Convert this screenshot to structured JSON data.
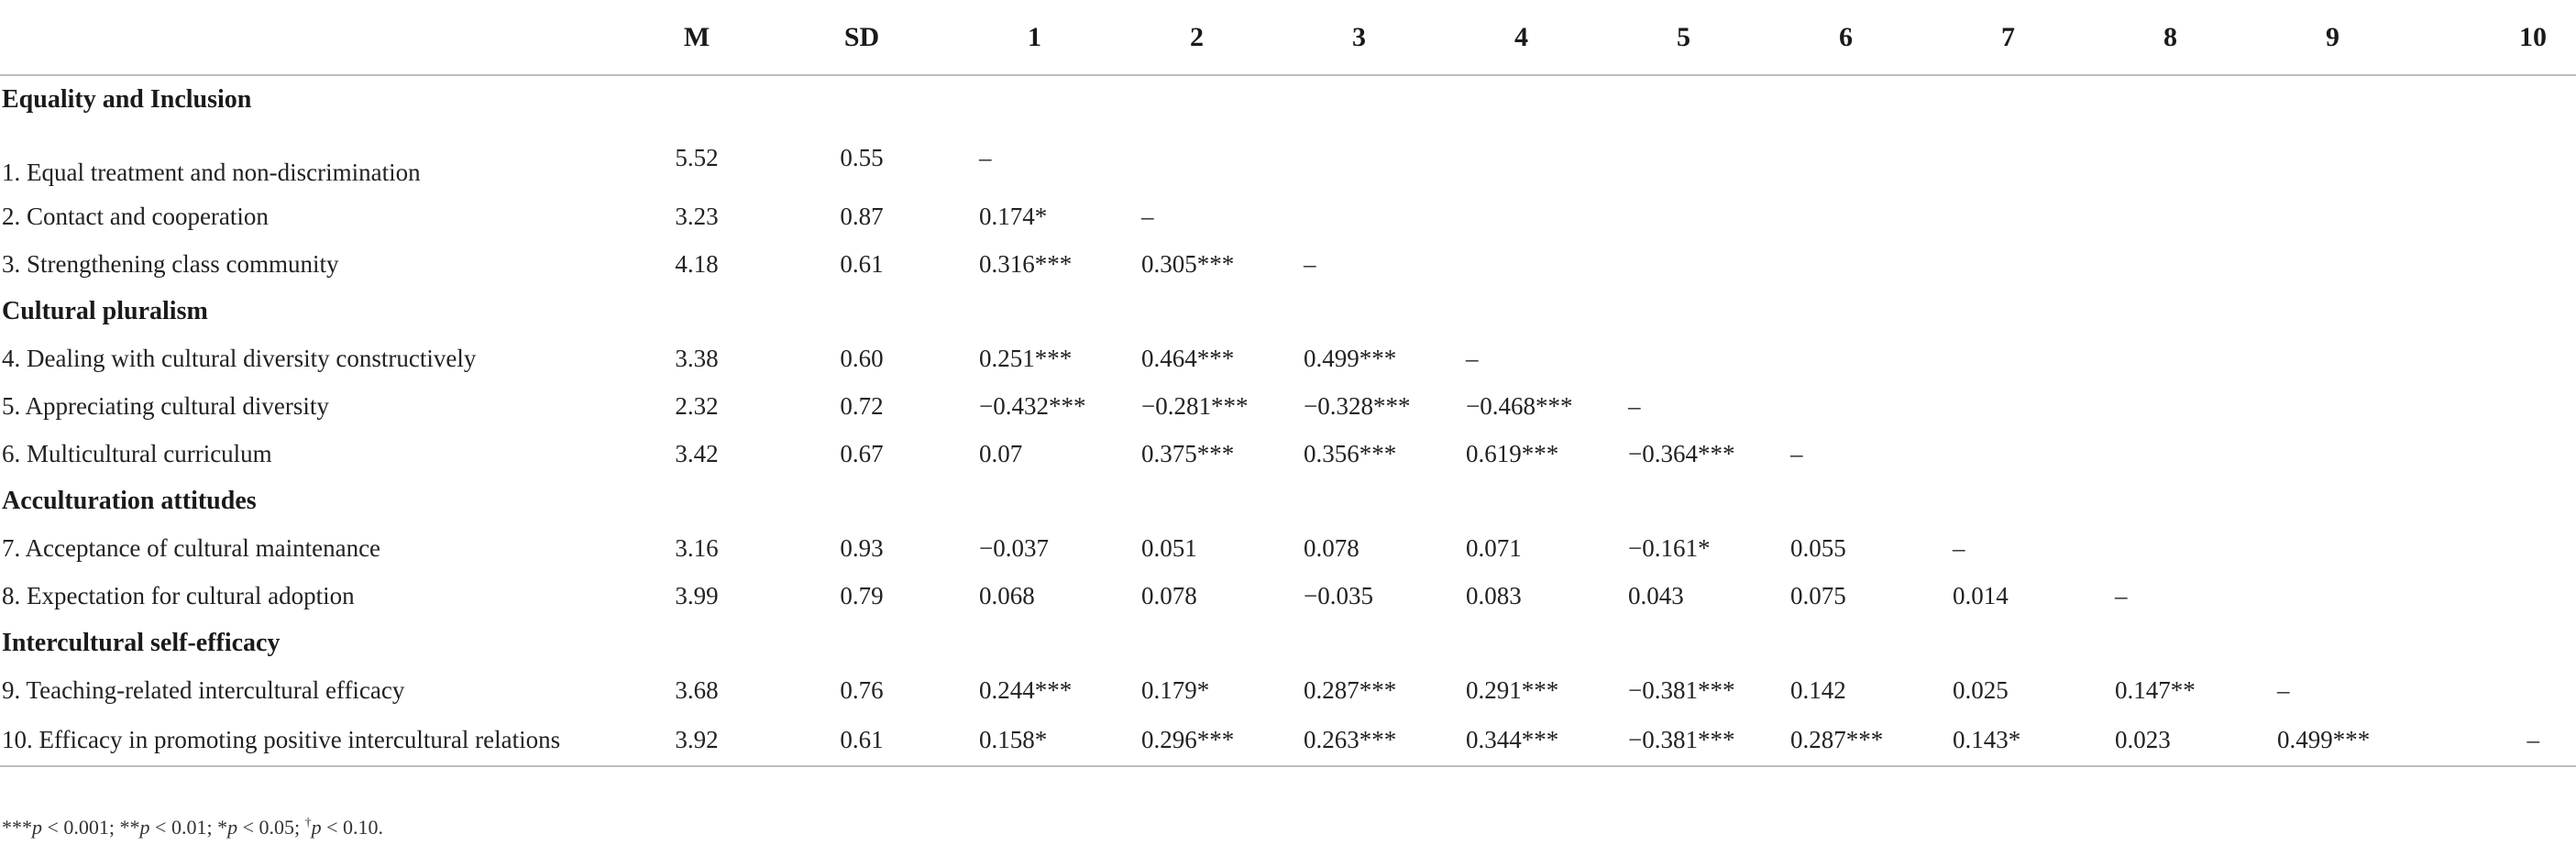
{
  "table": {
    "columns": [
      "",
      "M",
      "SD",
      "1",
      "2",
      "3",
      "4",
      "5",
      "6",
      "7",
      "8",
      "9",
      "10"
    ],
    "groups": [
      {
        "title": "Equality and Inclusion",
        "rows": [
          {
            "label": "1. Equal treatment and non-discrimination",
            "m": "5.52",
            "sd": "0.55",
            "cells": [
              "–",
              "",
              "",
              "",
              "",
              "",
              "",
              "",
              "",
              ""
            ]
          },
          {
            "label": "2. Contact and cooperation",
            "m": "3.23",
            "sd": "0.87",
            "cells": [
              "0.174*",
              "–",
              "",
              "",
              "",
              "",
              "",
              "",
              "",
              ""
            ]
          },
          {
            "label": "3. Strengthening class community",
            "m": "4.18",
            "sd": "0.61",
            "cells": [
              "0.316***",
              "0.305***",
              "–",
              "",
              "",
              "",
              "",
              "",
              "",
              ""
            ]
          }
        ]
      },
      {
        "title": "Cultural pluralism",
        "rows": [
          {
            "label": "4. Dealing with cultural diversity constructively",
            "m": "3.38",
            "sd": "0.60",
            "cells": [
              "0.251***",
              "0.464***",
              "0.499***",
              "–",
              "",
              "",
              "",
              "",
              "",
              ""
            ]
          },
          {
            "label": "5. Appreciating cultural diversity",
            "m": "2.32",
            "sd": "0.72",
            "cells": [
              "−0.432***",
              "−0.281***",
              "−0.328***",
              "−0.468***",
              "–",
              "",
              "",
              "",
              "",
              ""
            ]
          },
          {
            "label": "6. Multicultural curriculum",
            "m": "3.42",
            "sd": "0.67",
            "cells": [
              "0.07",
              "0.375***",
              "0.356***",
              "0.619***",
              "−0.364***",
              "–",
              "",
              "",
              "",
              ""
            ]
          }
        ]
      },
      {
        "title": "Acculturation attitudes",
        "rows": [
          {
            "label": "7. Acceptance of cultural maintenance",
            "m": "3.16",
            "sd": "0.93",
            "cells": [
              "−0.037",
              "0.051",
              "0.078",
              "0.071",
              "−0.161*",
              "0.055",
              "–",
              "",
              "",
              ""
            ]
          },
          {
            "label": "8. Expectation for cultural adoption",
            "m": "3.99",
            "sd": "0.79",
            "cells": [
              "0.068",
              "0.078",
              "−0.035",
              "0.083",
              "0.043",
              "0.075",
              "0.014",
              "–",
              "",
              ""
            ]
          }
        ]
      },
      {
        "title": "Intercultural self-efficacy",
        "rows": [
          {
            "label": "9. Teaching-related intercultural efficacy",
            "m": "3.68",
            "sd": "0.76",
            "cells": [
              "0.244***",
              "0.179*",
              "0.287***",
              "0.291***",
              "−0.381***",
              "0.142",
              "0.025",
              "0.147**",
              "–",
              ""
            ]
          },
          {
            "label": "10. Efficacy in promoting positive intercultural relations",
            "m": "3.92",
            "sd": "0.61",
            "cells": [
              "0.158*",
              "0.296***",
              "0.263***",
              "0.344***",
              "−0.381***",
              "0.287***",
              "0.143*",
              "0.023",
              "0.499***",
              "–"
            ]
          }
        ]
      }
    ]
  },
  "footnote": {
    "items": [
      {
        "stars": "***",
        "p": "p",
        "rest": " < 0.001; "
      },
      {
        "stars": "**",
        "p": "p",
        "rest": " < 0.01; "
      },
      {
        "stars": "*",
        "p": "p",
        "rest": " < 0.05; "
      },
      {
        "stars": "†",
        "p": "p",
        "rest": " < 0.10."
      }
    ]
  }
}
